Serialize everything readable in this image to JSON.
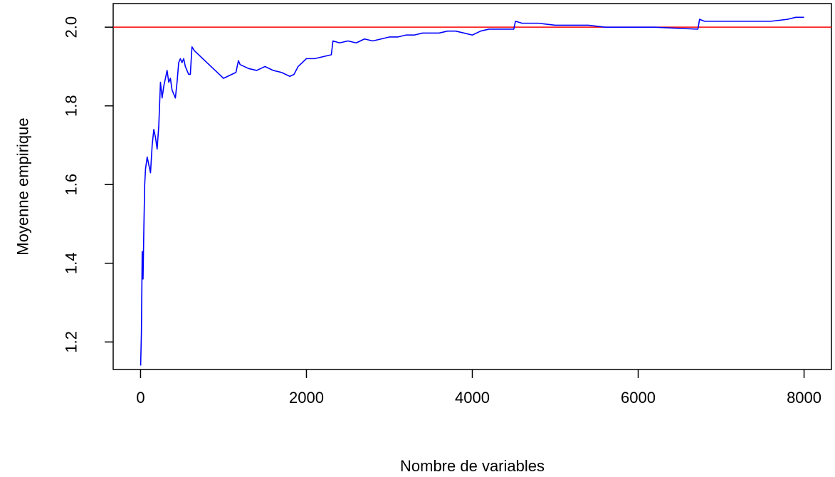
{
  "chart_data": {
    "type": "line",
    "title": "",
    "xlabel": "Nombre de variables",
    "ylabel": "Moyenne empirique",
    "xlim": [
      -330,
      8330
    ],
    "ylim": [
      1.13,
      2.06
    ],
    "xticks": [
      0,
      2000,
      4000,
      6000,
      8000
    ],
    "xtick_labels": [
      "0",
      "2000",
      "4000",
      "6000",
      "8000"
    ],
    "yticks": [
      1.2,
      1.4,
      1.6,
      1.8,
      2.0
    ],
    "ytick_labels": [
      "1.2",
      "1.4",
      "1.6",
      "1.8",
      "2.0"
    ],
    "grid": false,
    "reference_line": {
      "y": 2.0,
      "color": "#ff0000"
    },
    "series": [
      {
        "color": "#0000ff",
        "x": [
          1,
          10,
          20,
          30,
          40,
          50,
          60,
          80,
          100,
          120,
          140,
          160,
          180,
          200,
          220,
          240,
          260,
          280,
          300,
          320,
          340,
          360,
          380,
          400,
          420,
          440,
          460,
          480,
          500,
          520,
          540,
          560,
          580,
          600,
          620,
          650,
          700,
          750,
          800,
          850,
          900,
          950,
          1000,
          1050,
          1100,
          1150,
          1180,
          1200,
          1250,
          1300,
          1400,
          1500,
          1600,
          1700,
          1800,
          1850,
          1900,
          2000,
          2100,
          2200,
          2300,
          2320,
          2400,
          2500,
          2600,
          2700,
          2800,
          2900,
          3000,
          3100,
          3200,
          3300,
          3400,
          3500,
          3600,
          3700,
          3800,
          3900,
          4000,
          4100,
          4200,
          4300,
          4400,
          4500,
          4520,
          4600,
          4700,
          4800,
          5000,
          5200,
          5400,
          5600,
          5800,
          6000,
          6200,
          6400,
          6600,
          6720,
          6740,
          6800,
          7000,
          7200,
          7400,
          7600,
          7800,
          7900,
          8000
        ],
        "values": [
          1.14,
          1.22,
          1.43,
          1.36,
          1.49,
          1.6,
          1.64,
          1.67,
          1.65,
          1.63,
          1.7,
          1.74,
          1.72,
          1.69,
          1.75,
          1.86,
          1.82,
          1.85,
          1.87,
          1.89,
          1.86,
          1.87,
          1.84,
          1.83,
          1.82,
          1.86,
          1.91,
          1.92,
          1.91,
          1.92,
          1.9,
          1.89,
          1.88,
          1.88,
          1.95,
          1.94,
          1.93,
          1.92,
          1.91,
          1.9,
          1.89,
          1.88,
          1.87,
          1.875,
          1.88,
          1.885,
          1.915,
          1.905,
          1.9,
          1.895,
          1.89,
          1.9,
          1.89,
          1.885,
          1.875,
          1.88,
          1.9,
          1.92,
          1.92,
          1.925,
          1.93,
          1.965,
          1.96,
          1.965,
          1.96,
          1.97,
          1.965,
          1.97,
          1.975,
          1.975,
          1.98,
          1.98,
          1.985,
          1.985,
          1.985,
          1.99,
          1.99,
          1.985,
          1.98,
          1.99,
          1.995,
          1.995,
          1.995,
          1.995,
          2.015,
          2.01,
          2.01,
          2.01,
          2.005,
          2.005,
          2.005,
          2.0,
          2.0,
          2.0,
          2.0,
          1.998,
          1.996,
          1.995,
          2.02,
          2.015,
          2.015,
          2.015,
          2.015,
          2.015,
          2.02,
          2.025,
          2.025
        ]
      }
    ]
  }
}
